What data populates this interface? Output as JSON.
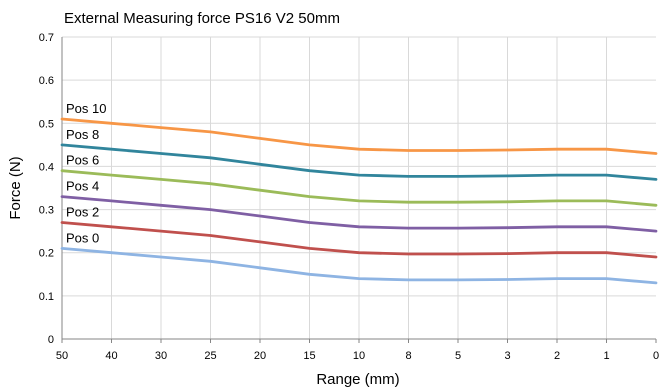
{
  "chart_data": {
    "type": "line",
    "title": "External Measuring force PS16 V2 50mm",
    "xlabel": "Range (mm)",
    "ylabel": "Force (N)",
    "categories": [
      "50",
      "40",
      "30",
      "25",
      "20",
      "15",
      "10",
      "8",
      "5",
      "3",
      "2",
      "1",
      "0"
    ],
    "yticks": [
      "0",
      "0.1",
      "0.2",
      "0.3",
      "0.4",
      "0.5",
      "0.6",
      "0.7"
    ],
    "ylim": [
      0,
      0.7
    ],
    "grid": true,
    "legend": "none",
    "series": [
      {
        "name": "Pos 0",
        "color": "#8eb4e3",
        "values": [
          0.21,
          0.2,
          0.19,
          0.18,
          0.165,
          0.15,
          0.14,
          0.137,
          0.137,
          0.138,
          0.14,
          0.14,
          0.13
        ]
      },
      {
        "name": "Pos 2",
        "color": "#c0504d",
        "values": [
          0.27,
          0.26,
          0.25,
          0.24,
          0.225,
          0.21,
          0.2,
          0.197,
          0.197,
          0.198,
          0.2,
          0.2,
          0.19
        ]
      },
      {
        "name": "Pos 4",
        "color": "#7f5fa4",
        "values": [
          0.33,
          0.32,
          0.31,
          0.3,
          0.285,
          0.27,
          0.26,
          0.257,
          0.257,
          0.258,
          0.26,
          0.26,
          0.25
        ]
      },
      {
        "name": "Pos 6",
        "color": "#9bbb59",
        "values": [
          0.39,
          0.38,
          0.37,
          0.36,
          0.345,
          0.33,
          0.32,
          0.317,
          0.317,
          0.318,
          0.32,
          0.32,
          0.31
        ]
      },
      {
        "name": "Pos 8",
        "color": "#31859c",
        "values": [
          0.45,
          0.44,
          0.43,
          0.42,
          0.405,
          0.39,
          0.38,
          0.377,
          0.377,
          0.378,
          0.38,
          0.38,
          0.37
        ]
      },
      {
        "name": "Pos 10",
        "color": "#f79646",
        "values": [
          0.51,
          0.5,
          0.49,
          0.48,
          0.465,
          0.45,
          0.44,
          0.437,
          0.437,
          0.438,
          0.44,
          0.44,
          0.43
        ]
      }
    ]
  }
}
